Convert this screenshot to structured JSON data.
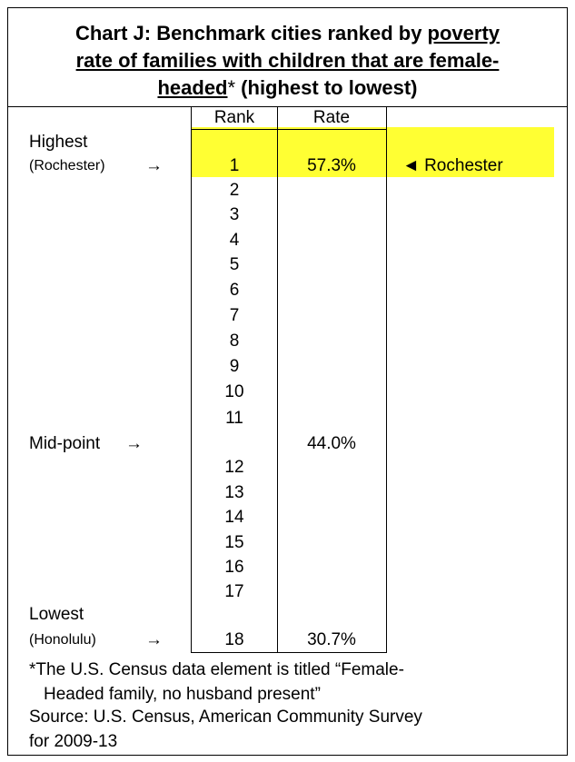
{
  "header": {
    "title_lines": [
      [
        "Chart J: Benchmark cities ranked by ",
        "poverty"
      ],
      [
        "rate of families with children that are female-"
      ],
      [
        "headed",
        "*",
        " (highest to lowest)"
      ]
    ]
  },
  "table": {
    "columns": [
      "Rank",
      "Rate"
    ],
    "ranks": [
      "1",
      "2",
      "3",
      "4",
      "5",
      "6",
      "7",
      "8",
      "9",
      "10",
      "11",
      "12",
      "13",
      "14",
      "15",
      "16",
      "17",
      "18"
    ],
    "highest": {
      "label": "Highest",
      "city": "(Rochester)",
      "rate": "57.3%"
    },
    "midpoint": {
      "label": "Mid-point",
      "rate": "44.0%"
    },
    "lowest": {
      "label": "Lowest",
      "city": "(Honolulu)",
      "rate": "30.7%"
    },
    "arrow": "→",
    "note": "◄ Rochester"
  },
  "footnotes": [
    "*The U.S. Census data element is titled “Female-",
    "Headed family, no husband present”",
    "Source: U.S. Census, American Community Survey",
    "for 2009-13"
  ]
}
